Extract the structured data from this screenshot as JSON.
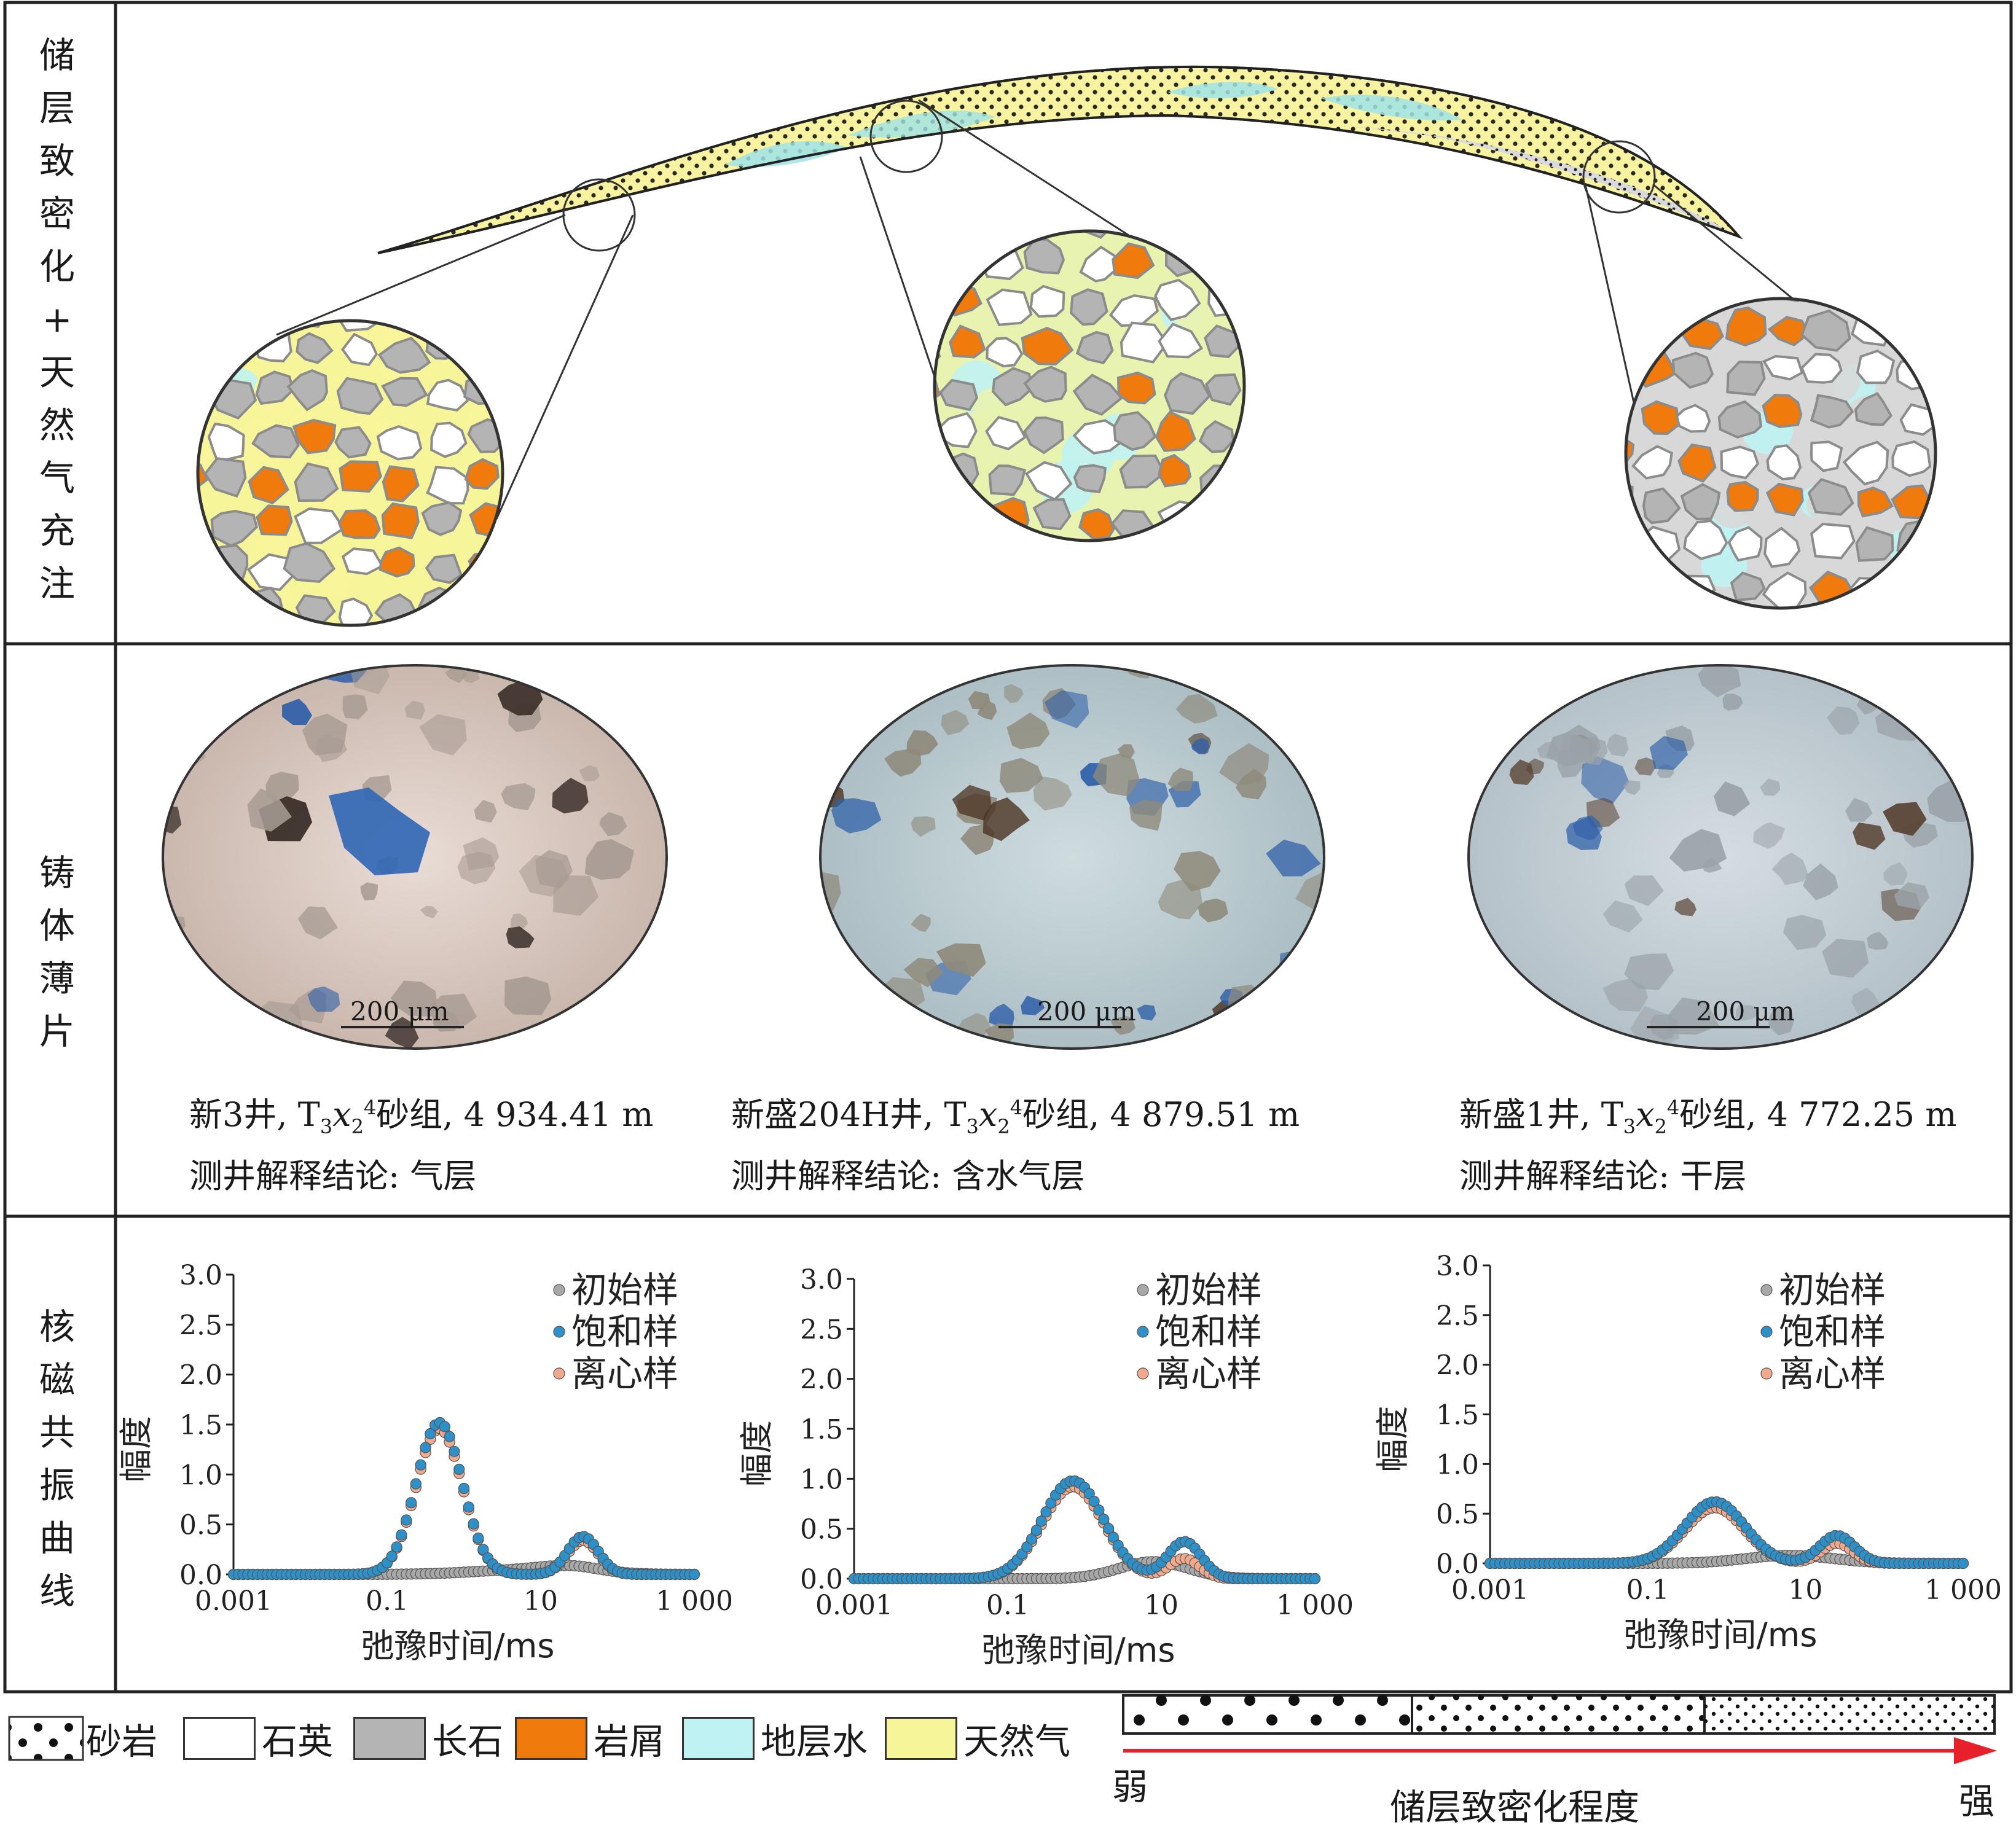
{
  "rows": {
    "row1": [
      "储",
      "层",
      "致",
      "密",
      "化",
      "+",
      "天",
      "然",
      "气",
      "充",
      "注"
    ],
    "row2": [
      "铸",
      "体",
      "薄",
      "片"
    ],
    "row3": [
      "核",
      "磁",
      "共",
      "振",
      "曲",
      "线"
    ]
  },
  "samples": [
    {
      "well": "新3井,",
      "unit_pre": "T",
      "sub1": "3",
      "mid": "x",
      "sub2": "2",
      "sup": "4",
      "unit_post": "砂组,",
      "depth": "4 934.41 m",
      "conclusion_label": "测井解释结论:",
      "conclusion": "气层",
      "scale": "200 μm"
    },
    {
      "well": "新盛204H井,",
      "unit_pre": "T",
      "sub1": "3",
      "mid": "x",
      "sub2": "2",
      "sup": "4",
      "unit_post": "砂组,",
      "depth": "4 879.51 m",
      "conclusion_label": "测井解释结论:",
      "conclusion": "含水气层",
      "scale": "200 μm"
    },
    {
      "well": "新盛1井,",
      "unit_pre": "T",
      "sub1": "3",
      "mid": "x",
      "sub2": "2",
      "sup": "4",
      "unit_post": "砂组,",
      "depth": "4 772.25 m",
      "conclusion_label": "测井解释结论:",
      "conclusion": "干层",
      "scale": "200 μm"
    }
  ],
  "legend": [
    {
      "label": "砂岩",
      "color": "#ffffff",
      "pattern": "dots"
    },
    {
      "label": "石英",
      "color": "#ffffff"
    },
    {
      "label": "长石",
      "color": "#b4b4b4"
    },
    {
      "label": "岩屑",
      "color": "#f07a0b"
    },
    {
      "label": "地层水",
      "color": "#bff3f3"
    },
    {
      "label": "天然气",
      "color": "#f7f59a"
    }
  ],
  "gradient": {
    "weak": "弱",
    "strong": "强",
    "label": "储层致密化程度",
    "arrow_color": "#e8202a"
  },
  "colors": {
    "saturated": "#2e90c8",
    "centrifuged": "#f0a98c",
    "initial": "#a8a8a8"
  },
  "chart_data": [
    {
      "type": "scatter",
      "xlabel": "弛豫时间/ms",
      "ylabel": "幅度",
      "xscale": "log",
      "xlim": [
        0.001,
        1000
      ],
      "ylim": [
        0,
        3.0
      ],
      "xticks": [
        "0.001",
        "0.1",
        "10",
        "1 000"
      ],
      "yticks": [
        "0.0",
        "0.5",
        "1.0",
        "1.5",
        "2.0",
        "2.5",
        "3.0"
      ],
      "legend_position": "top-right",
      "series": [
        {
          "name": "初始样",
          "peaks": [
            {
              "log10x": 0.9,
              "h": 0.05,
              "w": 0.7
            },
            {
              "log10x": 1.4,
              "h": 0.05,
              "w": 0.35
            }
          ]
        },
        {
          "name": "饱和样",
          "peaks": [
            {
              "log10x": -0.32,
              "h": 1.52,
              "w": 0.3
            },
            {
              "log10x": 1.55,
              "h": 0.38,
              "w": 0.2
            }
          ]
        },
        {
          "name": "离心样",
          "peaks": [
            {
              "log10x": -0.32,
              "h": 1.46,
              "w": 0.3
            },
            {
              "log10x": 1.55,
              "h": 0.34,
              "w": 0.2
            }
          ]
        }
      ]
    },
    {
      "type": "scatter",
      "xlabel": "弛豫时间/ms",
      "ylabel": "幅度",
      "xscale": "log",
      "xlim": [
        0.001,
        1000
      ],
      "ylim": [
        0,
        3.0
      ],
      "xticks": [
        "0.001",
        "0.1",
        "10",
        "1 000"
      ],
      "yticks": [
        "0.0",
        "0.5",
        "1.0",
        "1.5",
        "2.0",
        "2.5",
        "3.0"
      ],
      "legend_position": "top-right",
      "series": [
        {
          "name": "初始样",
          "peaks": [
            {
              "log10x": 0.9,
              "h": 0.17,
              "w": 0.45
            }
          ]
        },
        {
          "name": "饱和样",
          "peaks": [
            {
              "log10x": -0.15,
              "h": 0.98,
              "w": 0.4
            },
            {
              "log10x": 1.3,
              "h": 0.37,
              "w": 0.22
            }
          ]
        },
        {
          "name": "离心样",
          "peaks": [
            {
              "log10x": -0.15,
              "h": 0.92,
              "w": 0.4
            },
            {
              "log10x": 1.3,
              "h": 0.2,
              "w": 0.2
            }
          ]
        }
      ]
    },
    {
      "type": "scatter",
      "xlabel": "弛豫时间/ms",
      "ylabel": "幅度",
      "xscale": "log",
      "xlim": [
        0.001,
        1000
      ],
      "ylim": [
        0,
        3.0
      ],
      "xticks": [
        "0.001",
        "0.1",
        "10",
        "1 000"
      ],
      "yticks": [
        "0.0",
        "0.5",
        "1.0",
        "1.5",
        "2.0",
        "2.5",
        "3.0"
      ],
      "legend_position": "top-right",
      "series": [
        {
          "name": "初始样",
          "peaks": [
            {
              "log10x": 0.8,
              "h": 0.08,
              "w": 0.55
            }
          ]
        },
        {
          "name": "饱和样",
          "peaks": [
            {
              "log10x": -0.15,
              "h": 0.62,
              "w": 0.38
            },
            {
              "log10x": 1.4,
              "h": 0.28,
              "w": 0.22
            }
          ]
        },
        {
          "name": "离心样",
          "peaks": [
            {
              "log10x": -0.15,
              "h": 0.56,
              "w": 0.38
            },
            {
              "log10x": 1.4,
              "h": 0.2,
              "w": 0.2
            }
          ]
        }
      ]
    }
  ]
}
